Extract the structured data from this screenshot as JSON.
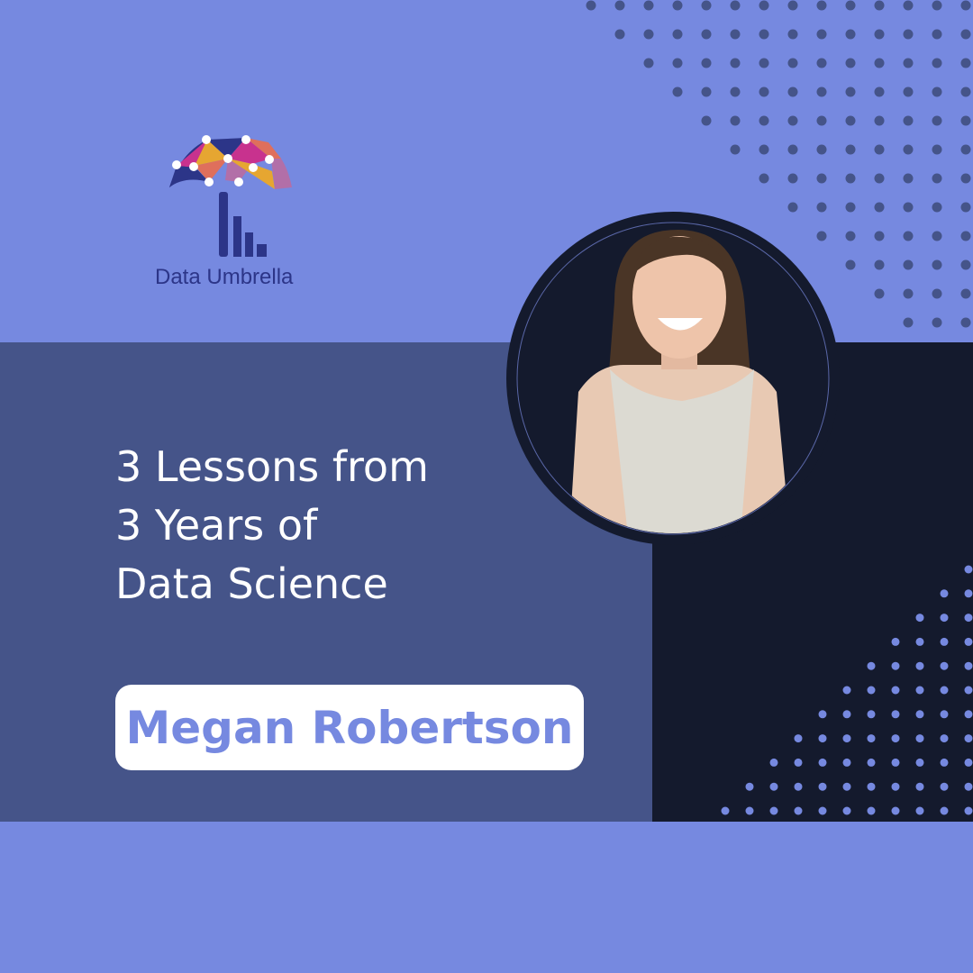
{
  "brand": {
    "name": "Data Umbrella"
  },
  "title_lines": [
    "3 Lessons from",
    "3 Years of",
    "Data Science"
  ],
  "speaker": {
    "name": "Megan Robertson"
  },
  "colors": {
    "background": "#7689e0",
    "band": "#455489",
    "dark_panel": "#141a2d",
    "logo_navy": "#2c3588",
    "dots_top": "#455489",
    "dots_bottom": "#7689e0"
  },
  "icons": [
    "umbrella-logo-icon",
    "speaker-photo"
  ]
}
